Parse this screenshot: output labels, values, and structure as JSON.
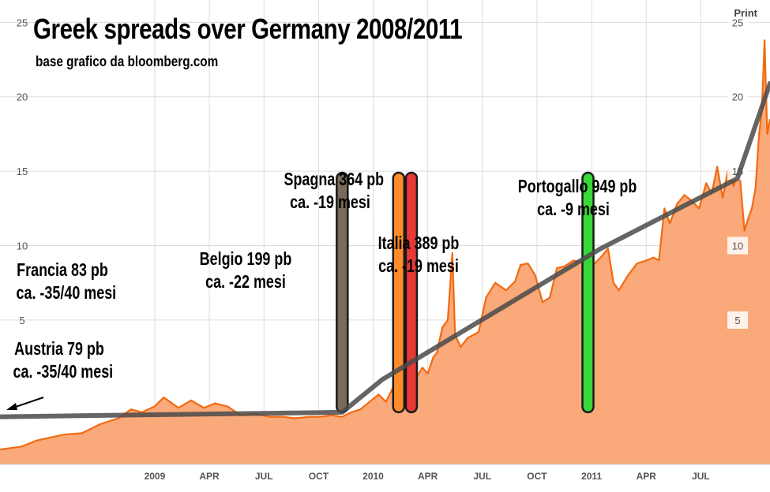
{
  "header": {
    "title": "Greek spreads over Germany 2008/2011",
    "subtitle": "base grafico da bloomberg.com",
    "print_label": "Print"
  },
  "colors": {
    "area_fill": "#f9a97a",
    "line": "#f26a10",
    "trend": "#4a4a4a",
    "grid": "#dddddd",
    "belgio_bar": "#7a6a5a",
    "spagna_bar": "#ff8c28",
    "italia_bar": "#e83838",
    "portogallo_bar": "#38d838"
  },
  "annotations": {
    "francia": {
      "line1": "Francia 83 pb",
      "line2": "ca. -35/40 mesi"
    },
    "austria": {
      "line1": "Austria 79 pb",
      "line2": "ca. -35/40 mesi"
    },
    "belgio": {
      "line1": "Belgio 199 pb",
      "line2": "ca. -22 mesi"
    },
    "spagna": {
      "line1": "Spagna 364 pb",
      "line2": "ca. -19 mesi"
    },
    "italia": {
      "line1": "Italia 389 pb",
      "line2": "ca. -19 mesi"
    },
    "portogallo": {
      "line1": "Portogallo 949 pb",
      "line2": "ca. -9 mesi"
    }
  },
  "chart_data": {
    "type": "area",
    "title": "Greek spreads over Germany 2008/2011",
    "xlabel": "",
    "ylabel": "",
    "ylim": [
      -4.7,
      26.5
    ],
    "y_ticks": [
      5,
      10,
      15,
      20,
      25
    ],
    "left_y_ticks": [
      5,
      10,
      15,
      20,
      25
    ],
    "grid": true,
    "x_range": [
      0,
      42.3
    ],
    "x_ticks": [
      {
        "label": "2009",
        "x": 8.5
      },
      {
        "label": "APR",
        "x": 11.5
      },
      {
        "label": "JUL",
        "x": 14.5
      },
      {
        "label": "OCT",
        "x": 17.5
      },
      {
        "label": "2010",
        "x": 20.5
      },
      {
        "label": "APR",
        "x": 23.5
      },
      {
        "label": "JUL",
        "x": 26.5
      },
      {
        "label": "OCT",
        "x": 29.5
      },
      {
        "label": "2011",
        "x": 32.5
      },
      {
        "label": "APR",
        "x": 35.5
      },
      {
        "label": "JUL",
        "x": 38.5
      }
    ],
    "series": [
      {
        "name": "Greek 10y spread vs Germany",
        "x": [
          0,
          1.2,
          2,
          3.5,
          4.5,
          5.5,
          6.5,
          7.2,
          7.8,
          8.5,
          9,
          9.8,
          10.5,
          11.2,
          11.8,
          12.5,
          13.2,
          14,
          14.8,
          15.5,
          16.2,
          17,
          17.6,
          18.2,
          18.8,
          19.3,
          19.8,
          20.3,
          20.8,
          21.2,
          21.6,
          22,
          22.4,
          22.8,
          23.2,
          23.5,
          23.8,
          24,
          24.3,
          24.6,
          24.85,
          25,
          25.3,
          25.7,
          26,
          26.3,
          26.7,
          27.2,
          27.8,
          28.3,
          28.6,
          29,
          29.4,
          29.8,
          30.2,
          30.6,
          31,
          31.5,
          32,
          32.5,
          33,
          33.4,
          33.7,
          34,
          34.5,
          35,
          35.5,
          35.9,
          36.2,
          36.5,
          36.8,
          37.2,
          37.6,
          38,
          38.4,
          38.8,
          39.1,
          39.4,
          39.7,
          40,
          40.3,
          40.6,
          40.9,
          41.1,
          41.3,
          41.5,
          41.7,
          41.85,
          42,
          42.15,
          42.3
        ],
        "values": [
          -3.7,
          -3.5,
          -3.1,
          -2.7,
          -2.6,
          -2.0,
          -1.6,
          -1.0,
          -1.2,
          -0.8,
          -0.2,
          -0.9,
          -0.4,
          -0.9,
          -0.6,
          -0.8,
          -1.4,
          -1.3,
          -1.5,
          -1.5,
          -1.6,
          -1.5,
          -1.5,
          -1.4,
          -1.5,
          -1.2,
          -1.0,
          -0.5,
          0.0,
          -0.5,
          0.5,
          1.5,
          0.5,
          1.0,
          1.8,
          1.4,
          2.5,
          2.8,
          4.5,
          5.0,
          9.5,
          4.0,
          3.2,
          3.8,
          4.0,
          4.2,
          6.5,
          7.5,
          7.0,
          7.6,
          8.7,
          8.8,
          8.0,
          6.2,
          6.5,
          8.5,
          8.6,
          9.0,
          8.9,
          8.6,
          9.2,
          9.8,
          7.5,
          7.0,
          8.0,
          8.8,
          9.0,
          9.2,
          9.0,
          12.5,
          11.5,
          12.8,
          13.4,
          13.0,
          12.5,
          14.2,
          13.5,
          15.3,
          13.2,
          15.1,
          14.0,
          15.3,
          11.0,
          11.8,
          12.5,
          13.8,
          17.5,
          19.0,
          23.8,
          17.5,
          18.5
        ]
      },
      {
        "name": "Trend",
        "x": [
          0,
          18.8,
          21.0,
          33.0,
          40.5,
          42.3
        ],
        "values": [
          -1.5,
          -1.2,
          1.0,
          9.8,
          14.5,
          20.9
        ]
      }
    ],
    "markers": [
      {
        "name": "Belgio",
        "x": 18.8,
        "y_top": 14.9,
        "y_bottom": -1.2
      },
      {
        "name": "Spagna",
        "x": 21.9,
        "y_top": 14.9,
        "y_bottom": -1.2
      },
      {
        "name": "Italia",
        "x": 22.6,
        "y_top": 14.9,
        "y_bottom": -1.2
      },
      {
        "name": "Portogallo",
        "x": 32.3,
        "y_top": 14.9,
        "y_bottom": -1.2
      }
    ]
  }
}
